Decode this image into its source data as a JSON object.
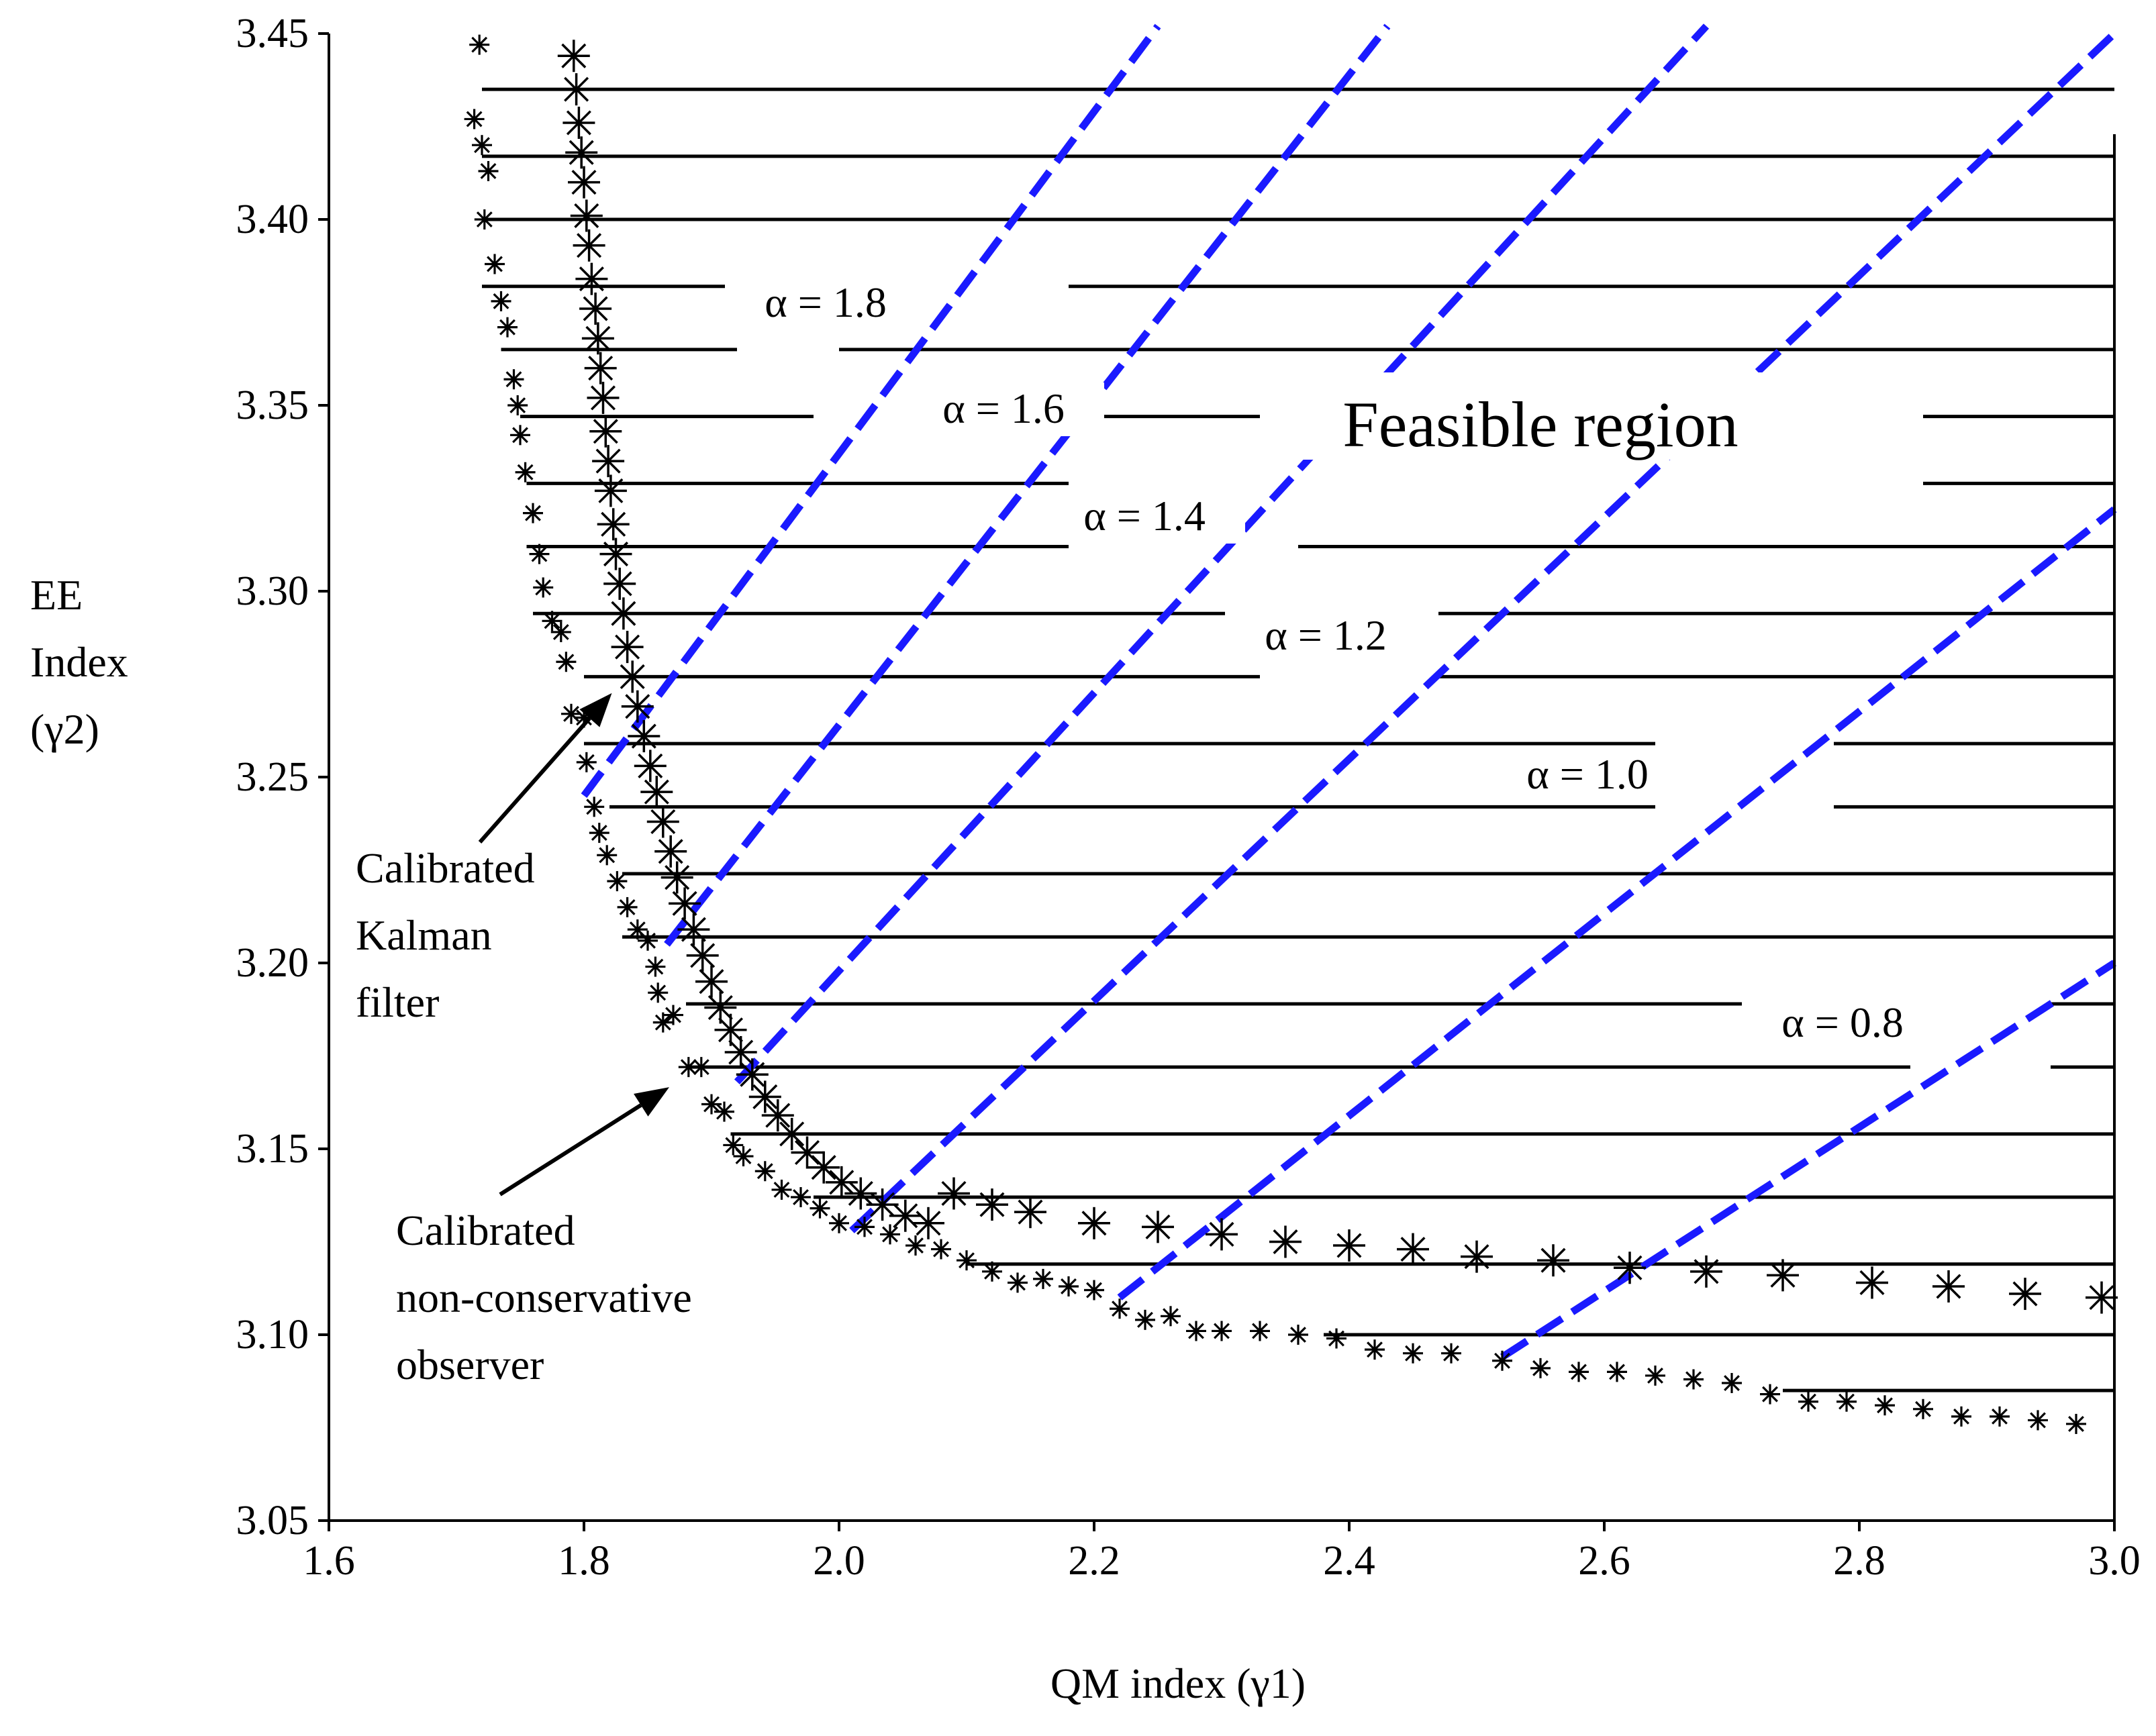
{
  "chart_data": {
    "type": "scatter",
    "xlabel": "QM index (γ1)",
    "ylabel": [
      "EE",
      "Index",
      "(γ2)"
    ],
    "xlim": [
      1.6,
      3.0
    ],
    "ylim": [
      3.05,
      3.45
    ],
    "x_ticks": [
      "1.6",
      "1.8",
      "2.0",
      "2.2",
      "2.4",
      "2.6",
      "2.8",
      "3.0"
    ],
    "y_ticks": [
      "3.05",
      "3.10",
      "3.15",
      "3.20",
      "3.25",
      "3.30",
      "3.35",
      "3.40",
      "3.45"
    ],
    "region_label": "Feasible region",
    "annotations": [
      {
        "lines": [
          "Calibrated",
          "Kalman",
          "filter"
        ],
        "arrow_to": [
          1.835,
          3.278
        ]
      },
      {
        "lines": [
          "Calibrated",
          "non-conservative",
          "observer"
        ],
        "arrow_to": [
          1.88,
          3.172
        ]
      }
    ],
    "series": [
      {
        "name": "Calibrated Kalman filter",
        "marker": "asterisk-large",
        "points": [
          [
            1.792,
            3.444
          ],
          [
            1.794,
            3.435
          ],
          [
            1.796,
            3.426
          ],
          [
            1.798,
            3.418
          ],
          [
            1.8,
            3.41
          ],
          [
            1.802,
            3.401
          ],
          [
            1.804,
            3.393
          ],
          [
            1.806,
            3.384
          ],
          [
            1.809,
            3.376
          ],
          [
            1.811,
            3.368
          ],
          [
            1.813,
            3.36
          ],
          [
            1.815,
            3.352
          ],
          [
            1.817,
            3.343
          ],
          [
            1.819,
            3.335
          ],
          [
            1.821,
            3.327
          ],
          [
            1.823,
            3.318
          ],
          [
            1.825,
            3.31
          ],
          [
            1.828,
            3.302
          ],
          [
            1.831,
            3.294
          ],
          [
            1.834,
            3.285
          ],
          [
            1.838,
            3.277
          ],
          [
            1.842,
            3.269
          ],
          [
            1.847,
            3.261
          ],
          [
            1.852,
            3.253
          ],
          [
            1.857,
            3.246
          ],
          [
            1.862,
            3.238
          ],
          [
            1.868,
            3.23
          ],
          [
            1.873,
            3.223
          ],
          [
            1.879,
            3.216
          ],
          [
            1.886,
            3.209
          ],
          [
            1.893,
            3.202
          ],
          [
            1.9,
            3.195
          ],
          [
            1.907,
            3.188
          ],
          [
            1.915,
            3.182
          ],
          [
            1.923,
            3.176
          ],
          [
            1.932,
            3.17
          ],
          [
            1.942,
            3.164
          ],
          [
            1.952,
            3.159
          ],
          [
            1.963,
            3.154
          ],
          [
            1.975,
            3.149
          ],
          [
            1.988,
            3.145
          ],
          [
            2.002,
            3.141
          ],
          [
            2.017,
            3.138
          ],
          [
            2.034,
            3.135
          ],
          [
            2.052,
            3.132
          ],
          [
            2.07,
            3.13
          ],
          [
            2.09,
            3.138
          ],
          [
            2.12,
            3.135
          ],
          [
            2.15,
            3.133
          ],
          [
            2.2,
            3.13
          ],
          [
            2.25,
            3.129
          ],
          [
            2.3,
            3.127
          ],
          [
            2.35,
            3.125
          ],
          [
            2.4,
            3.124
          ],
          [
            2.45,
            3.123
          ],
          [
            2.5,
            3.121
          ],
          [
            2.56,
            3.12
          ],
          [
            2.62,
            3.118
          ],
          [
            2.68,
            3.117
          ],
          [
            2.74,
            3.116
          ],
          [
            2.81,
            3.114
          ],
          [
            2.87,
            3.113
          ],
          [
            2.93,
            3.111
          ],
          [
            2.99,
            3.11
          ]
        ]
      },
      {
        "name": "Calibrated non-conservative observer",
        "marker": "asterisk-small",
        "points": [
          [
            1.718,
            3.447
          ],
          [
            1.714,
            3.427
          ],
          [
            1.72,
            3.42
          ],
          [
            1.725,
            3.413
          ],
          [
            1.722,
            3.4
          ],
          [
            1.73,
            3.388
          ],
          [
            1.735,
            3.378
          ],
          [
            1.74,
            3.371
          ],
          [
            1.745,
            3.357
          ],
          [
            1.748,
            3.35
          ],
          [
            1.75,
            3.342
          ],
          [
            1.754,
            3.332
          ],
          [
            1.76,
            3.321
          ],
          [
            1.765,
            3.31
          ],
          [
            1.768,
            3.301
          ],
          [
            1.775,
            3.292
          ],
          [
            1.782,
            3.289
          ],
          [
            1.786,
            3.281
          ],
          [
            1.79,
            3.267
          ],
          [
            1.8,
            3.266
          ],
          [
            1.802,
            3.254
          ],
          [
            1.808,
            3.242
          ],
          [
            1.812,
            3.235
          ],
          [
            1.818,
            3.229
          ],
          [
            1.826,
            3.222
          ],
          [
            1.834,
            3.215
          ],
          [
            1.842,
            3.209
          ],
          [
            1.85,
            3.206
          ],
          [
            1.856,
            3.199
          ],
          [
            1.858,
            3.192
          ],
          [
            1.862,
            3.184
          ],
          [
            1.87,
            3.186
          ],
          [
            1.882,
            3.172
          ],
          [
            1.892,
            3.172
          ],
          [
            1.9,
            3.162
          ],
          [
            1.91,
            3.16
          ],
          [
            1.917,
            3.151
          ],
          [
            1.925,
            3.148
          ],
          [
            1.942,
            3.144
          ],
          [
            1.955,
            3.139
          ],
          [
            1.97,
            3.137
          ],
          [
            1.985,
            3.134
          ],
          [
            2.0,
            3.13
          ],
          [
            2.02,
            3.129
          ],
          [
            2.04,
            3.127
          ],
          [
            2.06,
            3.124
          ],
          [
            2.08,
            3.123
          ],
          [
            2.1,
            3.12
          ],
          [
            2.12,
            3.117
          ],
          [
            2.14,
            3.114
          ],
          [
            2.16,
            3.115
          ],
          [
            2.18,
            3.113
          ],
          [
            2.2,
            3.112
          ],
          [
            2.22,
            3.107
          ],
          [
            2.24,
            3.104
          ],
          [
            2.26,
            3.105
          ],
          [
            2.28,
            3.101
          ],
          [
            2.3,
            3.101
          ],
          [
            2.33,
            3.101
          ],
          [
            2.36,
            3.1
          ],
          [
            2.39,
            3.099
          ],
          [
            2.42,
            3.096
          ],
          [
            2.45,
            3.095
          ],
          [
            2.48,
            3.095
          ],
          [
            2.52,
            3.093
          ],
          [
            2.55,
            3.091
          ],
          [
            2.58,
            3.09
          ],
          [
            2.61,
            3.09
          ],
          [
            2.64,
            3.089
          ],
          [
            2.67,
            3.088
          ],
          [
            2.7,
            3.087
          ],
          [
            2.73,
            3.084
          ],
          [
            2.76,
            3.082
          ],
          [
            2.79,
            3.082
          ],
          [
            2.82,
            3.081
          ],
          [
            2.85,
            3.08
          ],
          [
            2.88,
            3.078
          ],
          [
            2.91,
            3.078
          ],
          [
            2.94,
            3.077
          ],
          [
            2.97,
            3.076
          ]
        ]
      }
    ],
    "alpha_lines": [
      {
        "label": "α = 1.8",
        "alpha": "1.8",
        "x": [
          1.8,
          2.25
        ],
        "y": [
          3.245,
          3.452
        ]
      },
      {
        "label": "α = 1.6",
        "alpha": "1.6",
        "x": [
          1.865,
          2.43
        ],
        "y": [
          3.205,
          3.452
        ]
      },
      {
        "label": "α = 1.4",
        "alpha": "1.4",
        "x": [
          1.92,
          2.68
        ],
        "y": [
          3.168,
          3.452
        ]
      },
      {
        "label": "α = 1.2",
        "alpha": "1.2",
        "x": [
          2.01,
          3.0
        ],
        "y": [
          3.128,
          3.45
        ]
      },
      {
        "label": "α = 1.0",
        "alpha": "1.0",
        "x": [
          2.22,
          3.0
        ],
        "y": [
          3.11,
          3.322
        ]
      },
      {
        "label": "α = 0.8",
        "alpha": "0.8",
        "x": [
          2.52,
          3.0
        ],
        "y": [
          3.094,
          3.2
        ]
      }
    ],
    "region_hatch_lines": [
      {
        "y": 3.435,
        "segments": [
          [
            1.72,
            3.0
          ]
        ]
      },
      {
        "y": 3.417,
        "segments": [
          [
            1.72,
            3.0
          ]
        ]
      },
      {
        "y": 3.4,
        "segments": [
          [
            1.72,
            3.0
          ]
        ]
      },
      {
        "y": 3.382,
        "segments": [
          [
            1.72,
            1.92
          ],
          [
            2.18,
            3.0
          ]
        ]
      },
      {
        "y": 3.365,
        "segments": [
          [
            1.735,
            1.92
          ],
          [
            2.0,
            3.0
          ]
        ]
      },
      {
        "y": 3.347,
        "segments": [
          [
            1.75,
            1.98
          ],
          [
            2.2,
            2.33
          ],
          [
            2.85,
            3.0
          ]
        ]
      },
      {
        "y": 3.329,
        "segments": [
          [
            1.755,
            2.18
          ],
          [
            2.85,
            3.0
          ]
        ]
      },
      {
        "y": 3.312,
        "segments": [
          [
            1.755,
            2.18
          ],
          [
            2.36,
            3.0
          ]
        ]
      },
      {
        "y": 3.294,
        "segments": [
          [
            1.76,
            2.33
          ],
          [
            2.47,
            3.0
          ]
        ]
      },
      {
        "y": 3.277,
        "segments": [
          [
            1.8,
            2.33
          ],
          [
            2.47,
            3.0
          ]
        ]
      },
      {
        "y": 3.259,
        "segments": [
          [
            1.8,
            2.64
          ],
          [
            2.78,
            3.0
          ]
        ]
      },
      {
        "y": 3.242,
        "segments": [
          [
            1.82,
            2.64
          ],
          [
            2.78,
            3.0
          ]
        ]
      },
      {
        "y": 3.224,
        "segments": [
          [
            1.83,
            3.0
          ]
        ]
      },
      {
        "y": 3.207,
        "segments": [
          [
            1.83,
            3.0
          ]
        ]
      },
      {
        "y": 3.189,
        "segments": [
          [
            1.88,
            2.84
          ],
          [
            2.95,
            3.0
          ]
        ]
      },
      {
        "y": 3.172,
        "segments": [
          [
            1.88,
            2.84
          ],
          [
            2.95,
            3.0
          ]
        ]
      },
      {
        "y": 3.154,
        "segments": [
          [
            1.915,
            3.0
          ]
        ]
      },
      {
        "y": 3.137,
        "segments": [
          [
            1.98,
            3.0
          ]
        ]
      },
      {
        "y": 3.119,
        "segments": [
          [
            2.1,
            3.0
          ]
        ]
      },
      {
        "y": 3.1,
        "segments": [
          [
            2.38,
            3.0
          ]
        ]
      },
      {
        "y": 3.085,
        "segments": [
          [
            2.74,
            3.0
          ]
        ]
      }
    ]
  }
}
